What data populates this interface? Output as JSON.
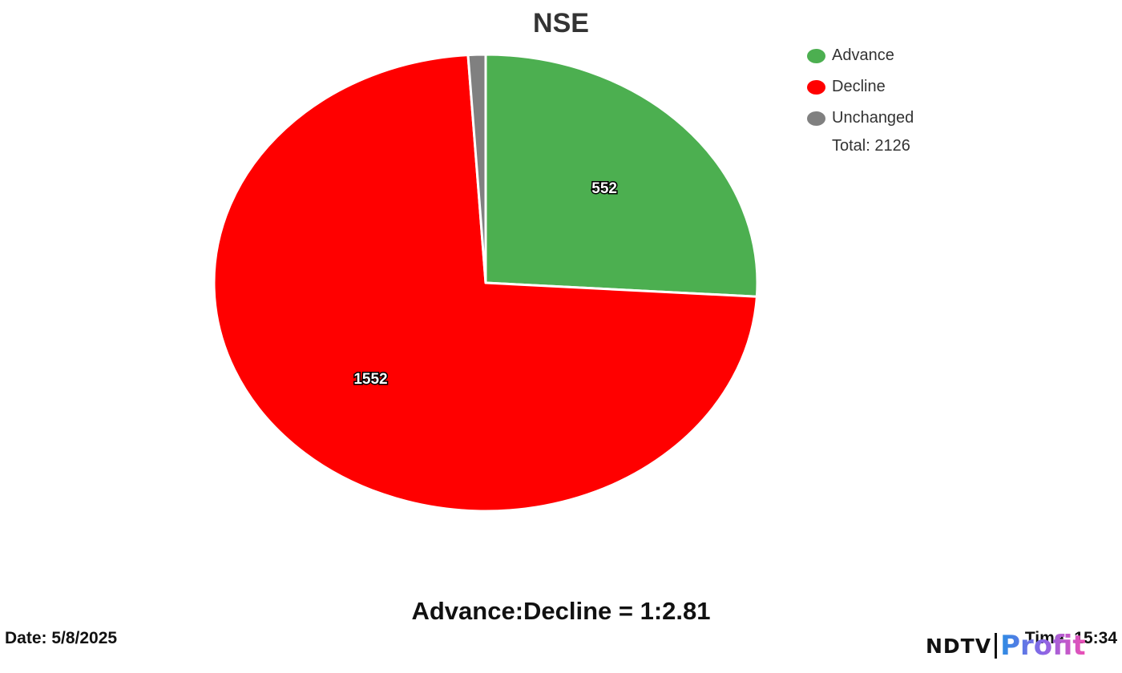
{
  "chart_data": {
    "type": "pie",
    "title": "NSE",
    "categories": [
      "Advance",
      "Decline",
      "Unchanged"
    ],
    "values": [
      552,
      1552,
      22
    ],
    "data_labels": [
      "552",
      "1552",
      ""
    ],
    "colors": [
      "#4caf50",
      "#ff0000",
      "#808080"
    ],
    "legend_placement": "top-right"
  },
  "legend": {
    "items": [
      {
        "label": "Advance",
        "color": "#4caf50"
      },
      {
        "label": "Decline",
        "color": "#ff0000"
      },
      {
        "label": "Unchanged",
        "color": "#808080"
      }
    ],
    "total": "Total: 2126"
  },
  "ratio_text": "Advance:Decline = 1:2.81",
  "date_text": "Date: 5/8/2025",
  "time_text": "Time: 15:34",
  "logo": {
    "ndtv": "NDTV",
    "profit": "Profit"
  }
}
